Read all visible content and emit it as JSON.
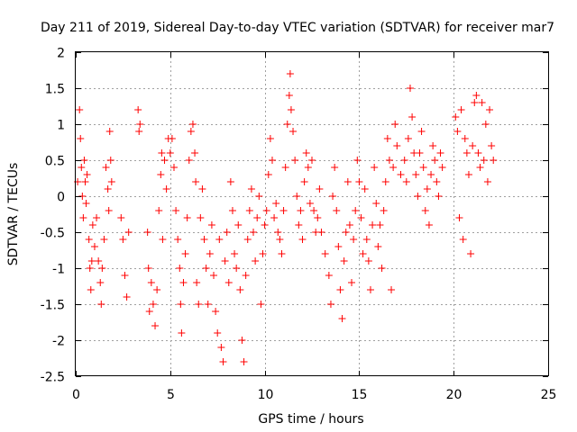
{
  "chart_data": {
    "type": "scatter",
    "title": "Day 211 of 2019, Sidereal Day-to-day VTEC variation (SDTVAR) for receiver mar7",
    "xlabel": "GPS time / hours",
    "ylabel": "SDTVAR / TECUs",
    "xlim": [
      0,
      25
    ],
    "ylim": [
      -2.5,
      2
    ],
    "grid": true,
    "marker": "+",
    "color": "#ff0000",
    "x_ticks": [
      "0",
      "5",
      "10",
      "15",
      "20",
      "25"
    ],
    "y_ticks": [
      "-2.5",
      "-2",
      "-1.5",
      "-1",
      "-0.5",
      "0",
      "0.5",
      "1",
      "1.5",
      "2"
    ],
    "series": [
      {
        "name": "SDTVAR",
        "points": [
          [
            0.1,
            0.2
          ],
          [
            0.2,
            1.2
          ],
          [
            0.25,
            0.8
          ],
          [
            0.3,
            0.4
          ],
          [
            0.35,
            0.0
          ],
          [
            0.4,
            -0.3
          ],
          [
            0.45,
            0.5
          ],
          [
            0.5,
            0.2
          ],
          [
            0.55,
            -0.1
          ],
          [
            0.6,
            0.3
          ],
          [
            0.7,
            -0.6
          ],
          [
            0.75,
            -1.0
          ],
          [
            0.8,
            -1.3
          ],
          [
            0.85,
            -0.9
          ],
          [
            0.9,
            -0.4
          ],
          [
            1.0,
            -0.7
          ],
          [
            1.1,
            -0.3
          ],
          [
            1.2,
            -0.9
          ],
          [
            1.3,
            -1.2
          ],
          [
            1.35,
            -1.5
          ],
          [
            1.4,
            -1.0
          ],
          [
            1.5,
            -0.6
          ],
          [
            1.6,
            0.4
          ],
          [
            1.7,
            0.1
          ],
          [
            1.75,
            -0.2
          ],
          [
            1.8,
            0.9
          ],
          [
            1.85,
            0.5
          ],
          [
            1.9,
            0.2
          ],
          [
            2.4,
            -0.3
          ],
          [
            2.5,
            -0.6
          ],
          [
            2.6,
            -1.1
          ],
          [
            2.7,
            -1.4
          ],
          [
            2.8,
            -0.5
          ],
          [
            3.3,
            1.2
          ],
          [
            3.35,
            0.9
          ],
          [
            3.4,
            1.0
          ],
          [
            3.8,
            -0.5
          ],
          [
            3.85,
            -1.0
          ],
          [
            3.9,
            -1.6
          ],
          [
            4.0,
            -1.2
          ],
          [
            4.1,
            -1.5
          ],
          [
            4.2,
            -1.8
          ],
          [
            4.3,
            -1.3
          ],
          [
            4.4,
            -0.2
          ],
          [
            4.5,
            0.3
          ],
          [
            4.55,
            0.6
          ],
          [
            4.6,
            -0.6
          ],
          [
            4.7,
            0.5
          ],
          [
            4.8,
            0.1
          ],
          [
            4.9,
            0.8
          ],
          [
            5.0,
            0.6
          ],
          [
            5.1,
            0.8
          ],
          [
            5.2,
            0.4
          ],
          [
            5.3,
            -0.2
          ],
          [
            5.4,
            -0.6
          ],
          [
            5.5,
            -1.0
          ],
          [
            5.55,
            -1.5
          ],
          [
            5.6,
            -1.9
          ],
          [
            5.7,
            -1.2
          ],
          [
            5.8,
            -0.8
          ],
          [
            5.9,
            -0.3
          ],
          [
            6.0,
            0.5
          ],
          [
            6.1,
            0.9
          ],
          [
            6.2,
            1.0
          ],
          [
            6.3,
            0.6
          ],
          [
            6.35,
            0.2
          ],
          [
            6.4,
            -1.2
          ],
          [
            6.5,
            -1.5
          ],
          [
            6.6,
            -0.3
          ],
          [
            6.7,
            0.1
          ],
          [
            6.8,
            -0.6
          ],
          [
            6.9,
            -1.0
          ],
          [
            7.0,
            -1.5
          ],
          [
            7.1,
            -0.8
          ],
          [
            7.2,
            -0.4
          ],
          [
            7.3,
            -1.1
          ],
          [
            7.4,
            -1.6
          ],
          [
            7.5,
            -1.9
          ],
          [
            7.6,
            -0.6
          ],
          [
            7.7,
            -2.1
          ],
          [
            7.8,
            -2.3
          ],
          [
            7.9,
            -0.9
          ],
          [
            8.0,
            -0.5
          ],
          [
            8.1,
            -1.2
          ],
          [
            8.2,
            0.2
          ],
          [
            8.3,
            -0.2
          ],
          [
            8.4,
            -0.8
          ],
          [
            8.5,
            -1.0
          ],
          [
            8.6,
            -0.4
          ],
          [
            8.7,
            -1.3
          ],
          [
            8.8,
            -2.0
          ],
          [
            8.9,
            -2.3
          ],
          [
            9.0,
            -1.1
          ],
          [
            9.1,
            -0.6
          ],
          [
            9.2,
            -0.2
          ],
          [
            9.3,
            0.1
          ],
          [
            9.4,
            -0.5
          ],
          [
            9.5,
            -0.9
          ],
          [
            9.6,
            -0.3
          ],
          [
            9.7,
            0.0
          ],
          [
            9.8,
            -1.5
          ],
          [
            9.9,
            -0.8
          ],
          [
            10.0,
            -0.4
          ],
          [
            10.1,
            -0.2
          ],
          [
            10.2,
            0.3
          ],
          [
            10.3,
            0.8
          ],
          [
            10.4,
            0.5
          ],
          [
            10.5,
            -0.3
          ],
          [
            10.6,
            -0.1
          ],
          [
            10.7,
            -0.5
          ],
          [
            10.8,
            -0.6
          ],
          [
            10.9,
            -0.8
          ],
          [
            11.0,
            -0.2
          ],
          [
            11.1,
            0.4
          ],
          [
            11.2,
            1.0
          ],
          [
            11.3,
            1.4
          ],
          [
            11.35,
            1.7
          ],
          [
            11.4,
            1.2
          ],
          [
            11.5,
            0.9
          ],
          [
            11.6,
            0.5
          ],
          [
            11.7,
            0.0
          ],
          [
            11.8,
            -0.4
          ],
          [
            11.9,
            -0.2
          ],
          [
            12.0,
            -0.6
          ],
          [
            12.1,
            0.2
          ],
          [
            12.2,
            0.6
          ],
          [
            12.3,
            0.4
          ],
          [
            12.4,
            -0.1
          ],
          [
            12.5,
            0.5
          ],
          [
            12.6,
            -0.2
          ],
          [
            12.7,
            -0.5
          ],
          [
            12.8,
            -0.3
          ],
          [
            12.9,
            0.1
          ],
          [
            13.0,
            -0.5
          ],
          [
            13.2,
            -0.8
          ],
          [
            13.4,
            -1.1
          ],
          [
            13.5,
            -1.5
          ],
          [
            13.6,
            0.0
          ],
          [
            13.7,
            0.4
          ],
          [
            13.8,
            -0.2
          ],
          [
            13.9,
            -0.7
          ],
          [
            14.0,
            -1.3
          ],
          [
            14.1,
            -1.7
          ],
          [
            14.2,
            -0.9
          ],
          [
            14.3,
            -0.5
          ],
          [
            14.4,
            0.2
          ],
          [
            14.5,
            -0.4
          ],
          [
            14.6,
            -1.2
          ],
          [
            14.7,
            -0.6
          ],
          [
            14.8,
            -0.2
          ],
          [
            14.9,
            0.5
          ],
          [
            15.0,
            0.2
          ],
          [
            15.1,
            -0.3
          ],
          [
            15.2,
            -0.8
          ],
          [
            15.3,
            0.1
          ],
          [
            15.4,
            -0.6
          ],
          [
            15.5,
            -0.9
          ],
          [
            15.6,
            -1.3
          ],
          [
            15.7,
            -0.4
          ],
          [
            15.8,
            0.4
          ],
          [
            15.9,
            -0.1
          ],
          [
            16.0,
            -0.7
          ],
          [
            16.1,
            -0.4
          ],
          [
            16.2,
            -1.0
          ],
          [
            16.3,
            -0.2
          ],
          [
            16.4,
            0.2
          ],
          [
            16.5,
            0.8
          ],
          [
            16.6,
            0.5
          ],
          [
            16.7,
            -1.3
          ],
          [
            16.8,
            0.4
          ],
          [
            16.9,
            1.0
          ],
          [
            17.0,
            0.7
          ],
          [
            17.2,
            0.3
          ],
          [
            17.4,
            0.5
          ],
          [
            17.5,
            0.2
          ],
          [
            17.6,
            0.8
          ],
          [
            17.7,
            1.5
          ],
          [
            17.8,
            1.1
          ],
          [
            17.9,
            0.6
          ],
          [
            18.0,
            0.3
          ],
          [
            18.1,
            0.0
          ],
          [
            18.2,
            0.6
          ],
          [
            18.3,
            0.9
          ],
          [
            18.4,
            0.4
          ],
          [
            18.5,
            -0.2
          ],
          [
            18.6,
            0.1
          ],
          [
            18.7,
            -0.4
          ],
          [
            18.8,
            0.3
          ],
          [
            18.9,
            0.7
          ],
          [
            19.0,
            0.5
          ],
          [
            19.1,
            0.2
          ],
          [
            19.2,
            0.0
          ],
          [
            19.3,
            0.6
          ],
          [
            19.4,
            0.4
          ],
          [
            20.1,
            1.1
          ],
          [
            20.2,
            0.9
          ],
          [
            20.3,
            -0.3
          ],
          [
            20.4,
            1.2
          ],
          [
            20.5,
            -0.6
          ],
          [
            20.6,
            0.8
          ],
          [
            20.7,
            0.6
          ],
          [
            20.8,
            0.3
          ],
          [
            20.9,
            -0.8
          ],
          [
            21.0,
            0.7
          ],
          [
            21.1,
            1.3
          ],
          [
            21.2,
            1.4
          ],
          [
            21.3,
            0.6
          ],
          [
            21.4,
            0.4
          ],
          [
            21.5,
            1.3
          ],
          [
            21.6,
            0.5
          ],
          [
            21.7,
            1.0
          ],
          [
            21.8,
            0.2
          ],
          [
            21.9,
            1.2
          ],
          [
            22.0,
            0.7
          ],
          [
            22.1,
            0.5
          ]
        ]
      }
    ]
  }
}
